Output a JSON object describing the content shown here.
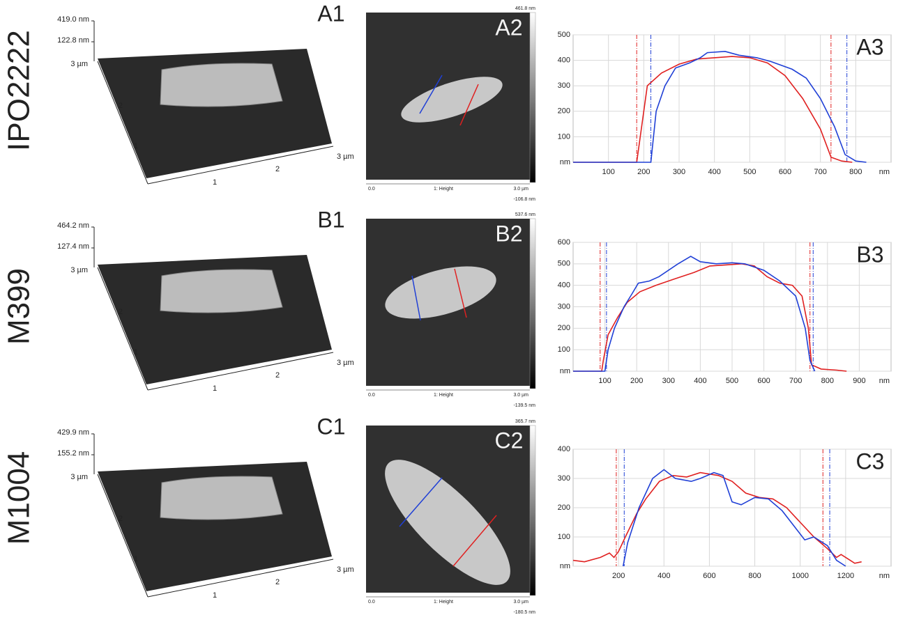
{
  "rows": [
    {
      "label": "IPO2222",
      "panel1": {
        "label": "A1",
        "z_max": "419.0 nm",
        "z_mid": "122.8 nm",
        "y_ticks": [
          "3 µm",
          "2",
          "1"
        ],
        "x_ticks": [
          "1",
          "2",
          "3 µm"
        ]
      },
      "panel2": {
        "label": "A2",
        "scale_max": "461.8 nm",
        "scale_min": "-106.8 nm",
        "x_start": "0.0",
        "channel": "1: Height",
        "x_end": "3.0 µm"
      }
    },
    {
      "label": "M399",
      "panel1": {
        "label": "B1",
        "z_max": "464.2 nm",
        "z_mid": "127.4 nm",
        "y_ticks": [
          "3 µm",
          "2",
          "1"
        ],
        "x_ticks": [
          "1",
          "2",
          "3 µm"
        ]
      },
      "panel2": {
        "label": "B2",
        "scale_max": "537.6 nm",
        "scale_min": "-139.5 nm",
        "x_start": "0.0",
        "channel": "1: Height",
        "x_end": "3.0 µm"
      }
    },
    {
      "label": "M1004",
      "panel1": {
        "label": "C1",
        "z_max": "429.9 nm",
        "z_mid": "155.2 nm",
        "y_ticks": [
          "3 µm",
          "2",
          "1"
        ],
        "x_ticks": [
          "1",
          "2",
          "3 µm"
        ]
      },
      "panel2": {
        "label": "C2",
        "scale_max": "365.7 nm",
        "scale_min": "-180.5 nm",
        "x_start": "0.0",
        "channel": "1: Height",
        "x_end": "3.0 µm"
      }
    }
  ],
  "chart_data": [
    {
      "type": "line",
      "title": "A3",
      "x_label": "nm",
      "xlim": [
        0,
        900
      ],
      "xticks": [
        100,
        200,
        300,
        400,
        500,
        600,
        700,
        800
      ],
      "ylim": [
        0,
        500
      ],
      "yticks": [
        {
          "value": 0,
          "label": "nm"
        },
        100,
        200,
        300,
        400,
        500
      ],
      "grid": true,
      "series": [
        {
          "color": "#e02020",
          "x": [
            0,
            180,
            195,
            210,
            250,
            300,
            350,
            400,
            450,
            500,
            550,
            600,
            650,
            700,
            730,
            760,
            790
          ],
          "values": [
            0,
            0,
            150,
            300,
            350,
            385,
            405,
            410,
            415,
            410,
            390,
            340,
            250,
            130,
            20,
            5,
            0
          ]
        },
        {
          "color": "#1f3fd6",
          "x": [
            0,
            220,
            235,
            260,
            290,
            330,
            360,
            380,
            430,
            470,
            520,
            560,
            620,
            660,
            700,
            740,
            770,
            800,
            830
          ],
          "values": [
            0,
            0,
            200,
            300,
            370,
            390,
            410,
            430,
            435,
            420,
            410,
            395,
            365,
            330,
            250,
            140,
            30,
            5,
            0
          ]
        }
      ],
      "markers": [
        {
          "color": "#e02020",
          "x": 180
        },
        {
          "color": "#1f3fd6",
          "x": 220
        },
        {
          "color": "#e02020",
          "x": 730
        },
        {
          "color": "#1f3fd6",
          "x": 775
        }
      ]
    },
    {
      "type": "line",
      "title": "B3",
      "x_label": "nm",
      "xlim": [
        0,
        1000
      ],
      "xticks": [
        100,
        200,
        300,
        400,
        500,
        600,
        700,
        800,
        900
      ],
      "ylim": [
        0,
        600
      ],
      "yticks": [
        {
          "value": 0,
          "label": "nm"
        },
        100,
        200,
        300,
        400,
        500,
        600
      ],
      "grid": true,
      "series": [
        {
          "color": "#e02020",
          "x": [
            0,
            90,
            95,
            110,
            140,
            170,
            210,
            260,
            320,
            380,
            430,
            480,
            530,
            570,
            610,
            650,
            690,
            720,
            740,
            750,
            780,
            830,
            860
          ],
          "values": [
            0,
            0,
            50,
            170,
            250,
            320,
            370,
            400,
            430,
            460,
            490,
            495,
            500,
            490,
            440,
            410,
            400,
            350,
            200,
            30,
            10,
            5,
            0
          ]
        },
        {
          "color": "#1f3fd6",
          "x": [
            0,
            100,
            110,
            130,
            160,
            185,
            205,
            240,
            270,
            330,
            370,
            400,
            450,
            500,
            540,
            600,
            650,
            700,
            730,
            745,
            760
          ],
          "values": [
            0,
            0,
            100,
            200,
            300,
            360,
            410,
            420,
            440,
            500,
            535,
            510,
            500,
            505,
            500,
            470,
            420,
            350,
            200,
            50,
            0
          ]
        }
      ],
      "markers": [
        {
          "color": "#e02020",
          "x": 85
        },
        {
          "color": "#1f3fd6",
          "x": 105
        },
        {
          "color": "#e02020",
          "x": 745
        },
        {
          "color": "#1f3fd6",
          "x": 755
        }
      ]
    },
    {
      "type": "line",
      "title": "C3",
      "x_label": "nm",
      "xlim": [
        0,
        1400
      ],
      "xticks": [
        200,
        400,
        600,
        800,
        1000,
        1200
      ],
      "ylim": [
        0,
        400
      ],
      "yticks": [
        {
          "value": 0,
          "label": "nm"
        },
        100,
        200,
        300,
        400
      ],
      "grid": true,
      "series": [
        {
          "color": "#e02020",
          "x": [
            0,
            50,
            120,
            160,
            180,
            200,
            230,
            280,
            320,
            380,
            440,
            500,
            560,
            640,
            700,
            760,
            820,
            880,
            940,
            1000,
            1060,
            1120,
            1160,
            1180,
            1220,
            1240,
            1270
          ],
          "values": [
            20,
            15,
            30,
            45,
            30,
            50,
            100,
            180,
            230,
            290,
            310,
            305,
            320,
            310,
            290,
            250,
            235,
            230,
            200,
            150,
            100,
            60,
            30,
            40,
            20,
            10,
            15
          ]
        },
        {
          "color": "#1f3fd6",
          "x": [
            220,
            240,
            290,
            350,
            400,
            450,
            520,
            560,
            620,
            660,
            700,
            740,
            800,
            860,
            920,
            980,
            1020,
            1060,
            1120,
            1160,
            1200
          ],
          "values": [
            0,
            80,
            200,
            300,
            330,
            300,
            290,
            300,
            320,
            310,
            220,
            210,
            235,
            230,
            190,
            130,
            90,
            100,
            70,
            20,
            0
          ]
        }
      ],
      "markers": [
        {
          "color": "#e02020",
          "x": 190
        },
        {
          "color": "#1f3fd6",
          "x": 225
        },
        {
          "color": "#e02020",
          "x": 1100
        },
        {
          "color": "#1f3fd6",
          "x": 1130
        }
      ]
    }
  ]
}
